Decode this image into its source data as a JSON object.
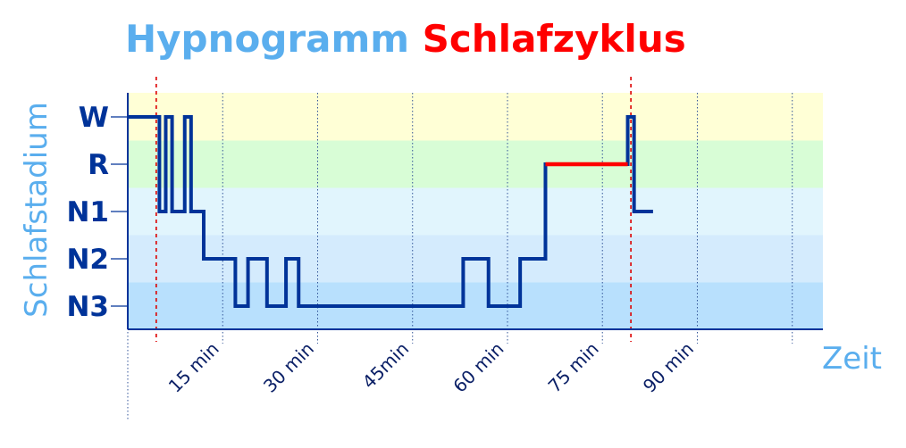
{
  "title_part1": "Hypnogramm",
  "title_part2": "Schlafzyklus",
  "colors": {
    "title_part1": "#5aaeee",
    "title_part2": "#ff0000",
    "hypnogram_line": "#003399",
    "rem_segment": "#ff0000",
    "cycle_markers": "#dd0000",
    "axis_label": "#5aaeee",
    "stage_labels": "#003399",
    "band_W": "#ffffd6",
    "band_R": "#d8fdd6",
    "band_N1": "#e1f5fd",
    "band_N2": "#d4ebfd",
    "band_N3": "#b8e0fd"
  },
  "chart_data": {
    "type": "line",
    "step": true,
    "title": "Hypnogramm Schlafzyklus",
    "xlabel": "Zeit",
    "ylabel": "Schlafstadium",
    "stages": [
      "W",
      "R",
      "N1",
      "N2",
      "N3"
    ],
    "x_ticks": [
      15,
      30,
      45,
      60,
      75,
      90
    ],
    "x_tick_labels": [
      "15 min",
      "30 min",
      "45min",
      "60 min",
      "75 min",
      "90 min"
    ],
    "xlim": [
      0,
      110
    ],
    "grid": true,
    "cycle_markers_min": [
      4.5,
      79.5
    ],
    "steps": [
      {
        "t": 0,
        "stage": "W"
      },
      {
        "t": 5,
        "stage": "N1"
      },
      {
        "t": 6,
        "stage": "W"
      },
      {
        "t": 7,
        "stage": "N1"
      },
      {
        "t": 9,
        "stage": "W"
      },
      {
        "t": 10,
        "stage": "N1"
      },
      {
        "t": 12,
        "stage": "N2"
      },
      {
        "t": 17,
        "stage": "N3"
      },
      {
        "t": 19,
        "stage": "N2"
      },
      {
        "t": 22,
        "stage": "N3"
      },
      {
        "t": 25,
        "stage": "N2"
      },
      {
        "t": 27,
        "stage": "N3"
      },
      {
        "t": 53,
        "stage": "N2"
      },
      {
        "t": 57,
        "stage": "N3"
      },
      {
        "t": 62,
        "stage": "N2"
      },
      {
        "t": 66,
        "stage": "R"
      },
      {
        "t": 79,
        "stage": "W"
      },
      {
        "t": 80,
        "stage": "N1"
      },
      {
        "t": 83,
        "stage": "N1"
      }
    ],
    "highlight": {
      "stage": "R",
      "from": 66,
      "to": 79
    }
  }
}
